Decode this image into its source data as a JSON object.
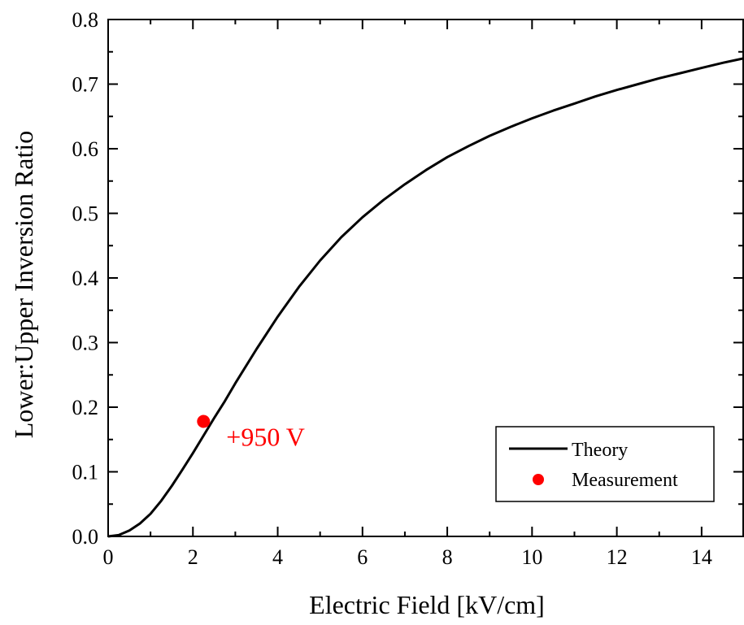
{
  "chart_data": {
    "type": "line",
    "xlabel": "Electric Field [kV/cm]",
    "ylabel": "Lower:Upper Inversion Ratio",
    "xlim": [
      0,
      15
    ],
    "ylim": [
      0,
      0.8
    ],
    "xticks": [
      "0",
      "2",
      "4",
      "6",
      "8",
      "10",
      "12",
      "14"
    ],
    "yticks": [
      "0.0",
      "0.1",
      "0.2",
      "0.3",
      "0.4",
      "0.5",
      "0.6",
      "0.7",
      "0.8"
    ],
    "grid": false,
    "legend_position": "bottom-right",
    "series": [
      {
        "name": "Theory",
        "kind": "line",
        "color": "#000000",
        "x": [
          0,
          0.25,
          0.5,
          0.75,
          1.0,
          1.25,
          1.5,
          1.75,
          2.0,
          2.25,
          2.5,
          2.75,
          3.0,
          3.5,
          4.0,
          4.5,
          5.0,
          5.5,
          6.0,
          6.5,
          7.0,
          7.5,
          8.0,
          8.5,
          9.0,
          9.5,
          10.0,
          10.5,
          11.0,
          11.5,
          12.0,
          12.5,
          13.0,
          13.5,
          14.0,
          14.5,
          15.0
        ],
        "y": [
          0.0,
          0.002,
          0.009,
          0.02,
          0.035,
          0.055,
          0.078,
          0.103,
          0.129,
          0.156,
          0.183,
          0.209,
          0.237,
          0.29,
          0.34,
          0.386,
          0.427,
          0.463,
          0.494,
          0.521,
          0.545,
          0.567,
          0.587,
          0.604,
          0.62,
          0.634,
          0.647,
          0.659,
          0.67,
          0.681,
          0.691,
          0.7,
          0.709,
          0.717,
          0.725,
          0.733,
          0.74
        ]
      },
      {
        "name": "Measurement",
        "kind": "scatter",
        "color": "#ff0000",
        "points": [
          {
            "x": 2.25,
            "y": 0.178,
            "label": "+950 V"
          }
        ]
      }
    ]
  }
}
